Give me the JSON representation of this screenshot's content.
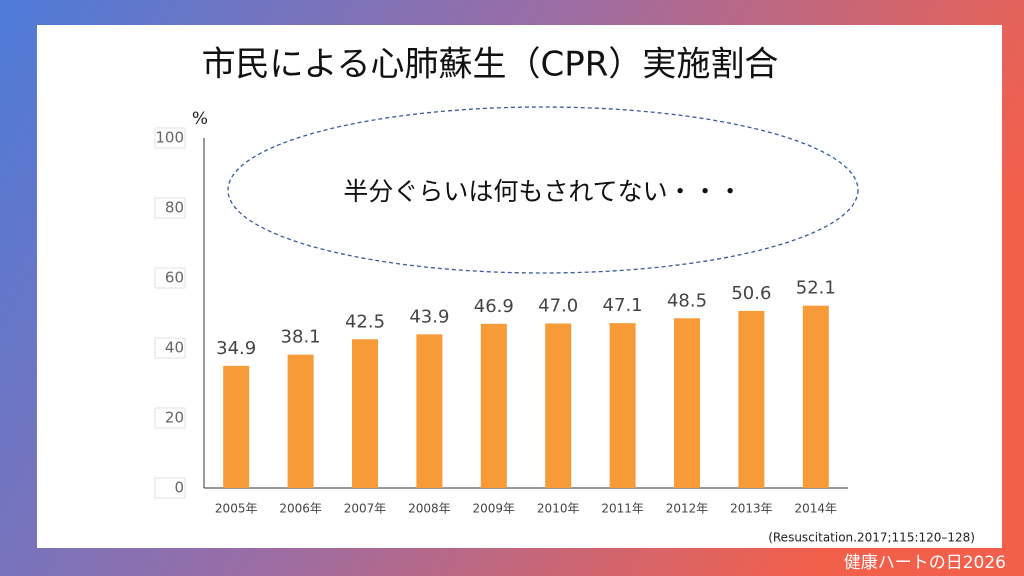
{
  "chart_data": {
    "type": "bar",
    "title": "市民による心肺蘇生（CPR）実施割合",
    "ylabel": "%",
    "annotation": "半分ぐらいは何もされてない・・・",
    "source": "(Resuscitation.2017;115:120–128)",
    "categories": [
      "2005年",
      "2006年",
      "2007年",
      "2008年",
      "2009年",
      "2010年",
      "2011年",
      "2012年",
      "2013年",
      "2014年"
    ],
    "values": [
      34.9,
      38.1,
      42.5,
      43.9,
      46.9,
      47.0,
      47.1,
      48.5,
      50.6,
      52.1
    ],
    "value_labels": [
      "34.9",
      "38.1",
      "42.5",
      "43.9",
      "46.9",
      "47.0",
      "47.1",
      "48.5",
      "50.6",
      "52.1"
    ],
    "color": "#f79a38",
    "ylim": [
      0,
      100
    ],
    "yticks": [
      0,
      20,
      40,
      60,
      80,
      100
    ]
  },
  "footer": "健康ハートの日2026"
}
